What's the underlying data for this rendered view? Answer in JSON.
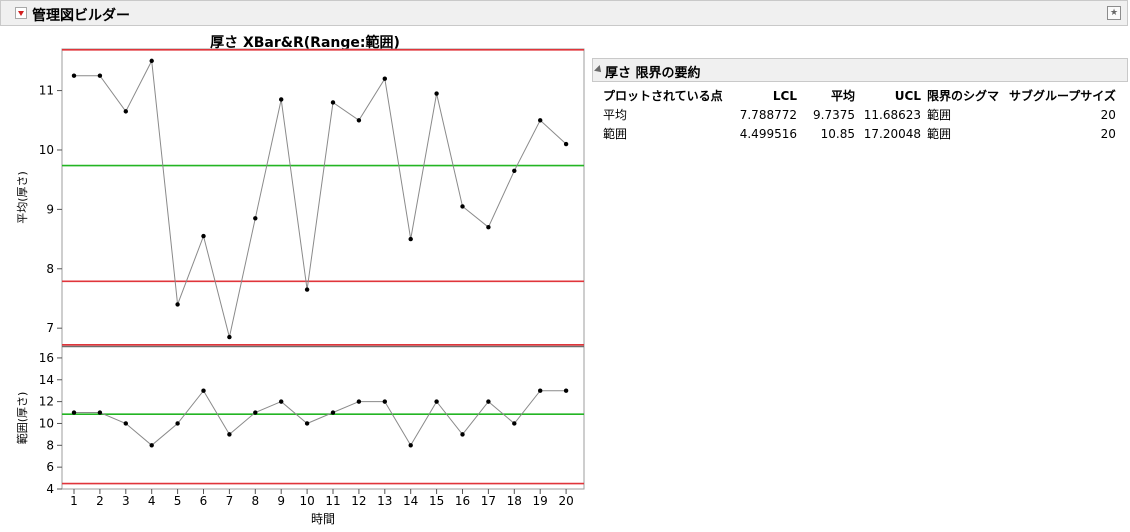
{
  "app": {
    "title": "管理図ビルダー"
  },
  "chart_data": {
    "type": "line",
    "title": "厚さ  XBar&R(Range:範囲)",
    "xlabel": "時間",
    "categories": [
      "1",
      "2",
      "3",
      "4",
      "5",
      "6",
      "7",
      "8",
      "9",
      "10",
      "11",
      "12",
      "13",
      "14",
      "15",
      "16",
      "17",
      "18",
      "19",
      "20"
    ],
    "panels": [
      {
        "name": "xbar",
        "ylabel": "平均(厚さ)",
        "ylim": [
          6.7,
          11.7
        ],
        "yticks": [
          7,
          8,
          9,
          10,
          11
        ],
        "values": [
          11.25,
          11.25,
          10.65,
          11.5,
          7.4,
          8.55,
          6.85,
          8.85,
          10.85,
          7.65,
          10.8,
          10.5,
          11.2,
          8.5,
          10.95,
          9.05,
          8.7,
          9.65,
          10.5,
          10.1
        ],
        "lcl": 7.788772,
        "center": 9.7375,
        "ucl": 11.68623
      },
      {
        "name": "range",
        "ylabel": "範囲(厚さ)",
        "ylim": [
          4,
          17
        ],
        "yticks": [
          4,
          6,
          8,
          10,
          12,
          14,
          16
        ],
        "values": [
          11,
          11,
          10,
          8,
          10,
          13,
          9,
          11,
          12,
          10,
          11,
          12,
          12,
          8,
          12,
          9,
          12,
          10,
          13,
          13
        ],
        "lcl": 4.499516,
        "center": 10.85,
        "ucl": 17.20048
      }
    ],
    "colors": {
      "limit": "#e0353b",
      "center": "#23b523",
      "line": "#8a8a8a",
      "point": "#000000"
    }
  },
  "summary": {
    "title": "厚さ 限界の要約",
    "headers": [
      "プロットされている点",
      "LCL",
      "平均",
      "UCL",
      "限界のシグマ",
      "サブグループサイズ"
    ],
    "rows": [
      [
        "平均",
        "7.788772",
        "9.7375",
        "11.68623",
        "範囲",
        "20"
      ],
      [
        "範囲",
        "4.499516",
        "10.85",
        "17.20048",
        "範囲",
        "20"
      ]
    ]
  }
}
